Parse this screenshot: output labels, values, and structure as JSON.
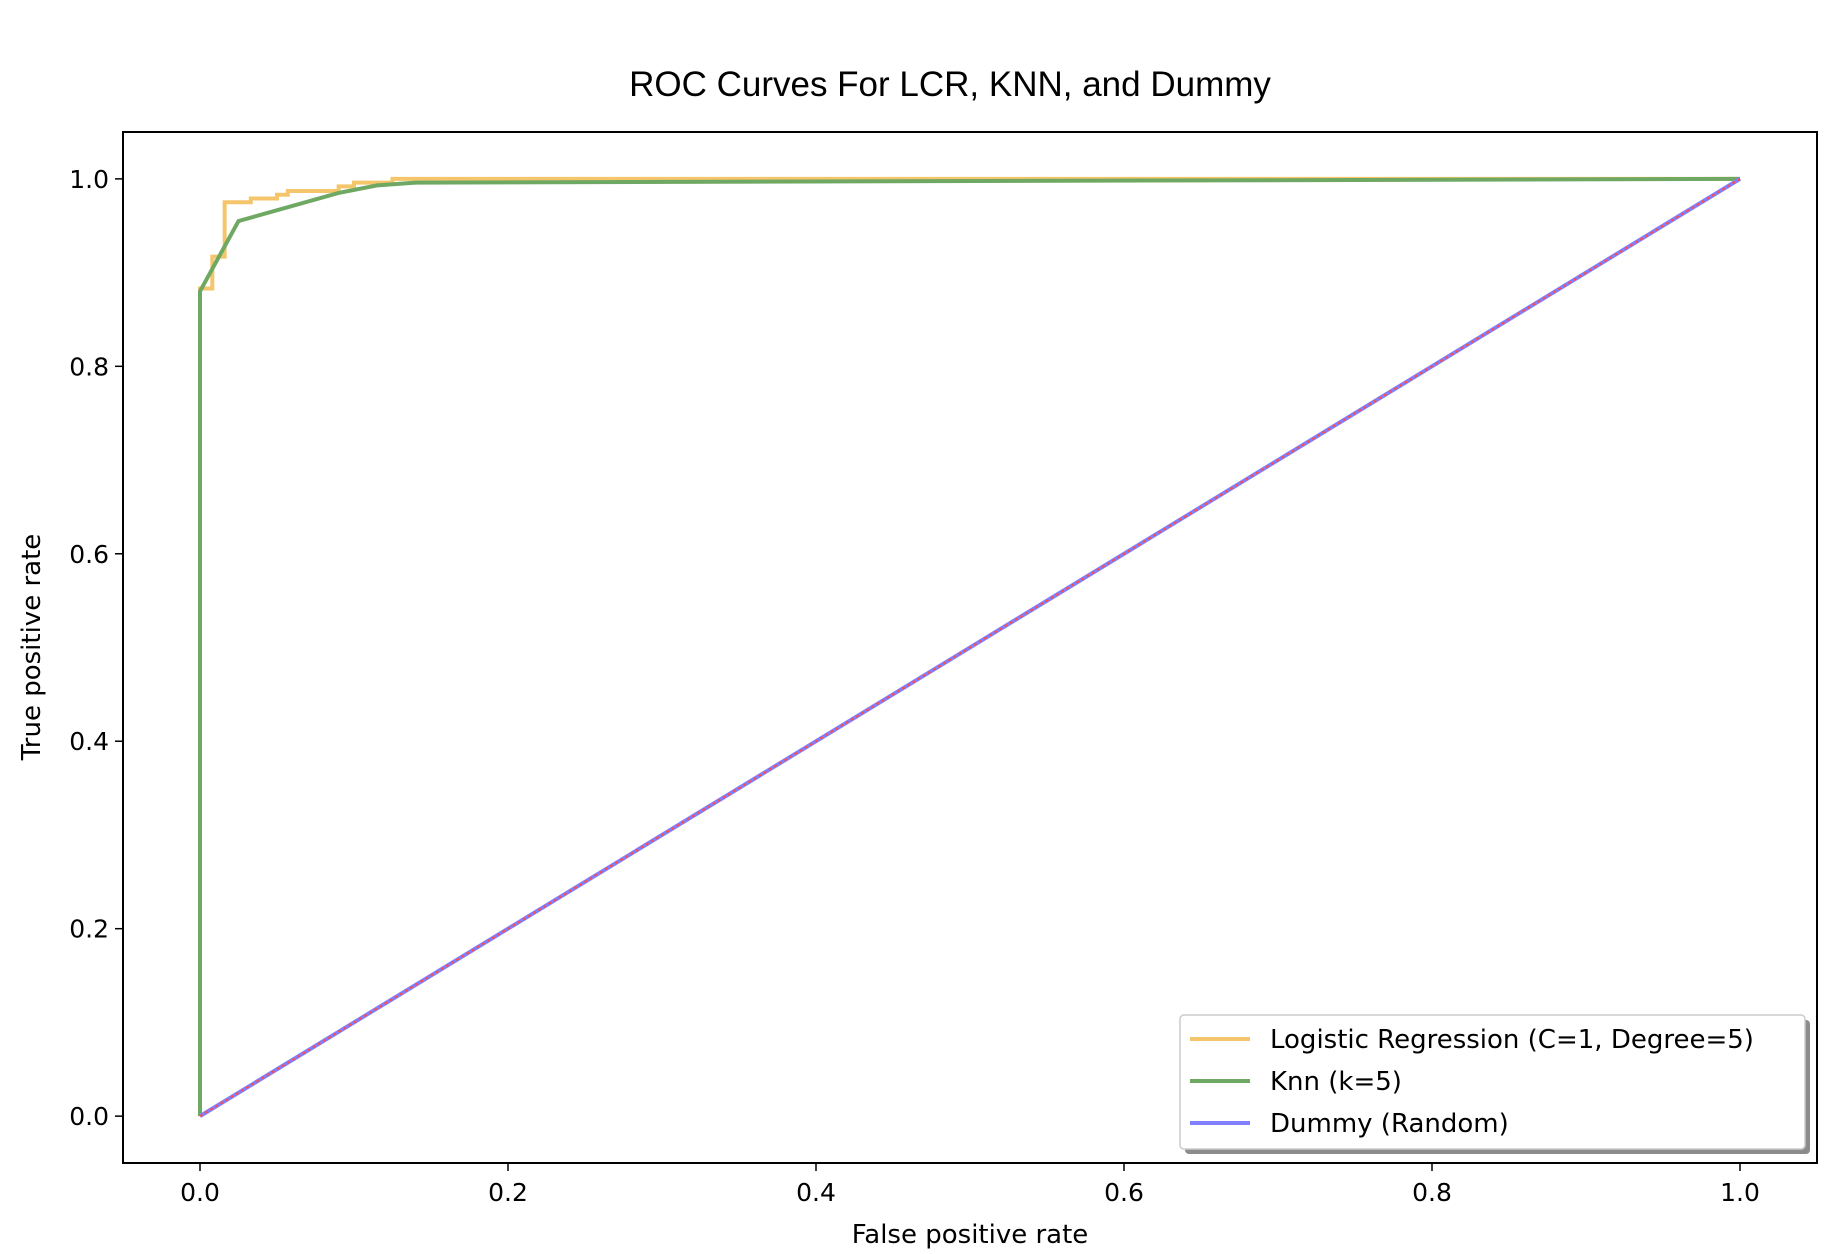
{
  "chart_data": {
    "type": "line",
    "title": "ROC Curves For LCR, KNN, and Dummy",
    "xlabel": "False positive rate",
    "ylabel": "True positive rate",
    "xlim": [
      -0.05,
      1.05
    ],
    "ylim": [
      -0.05,
      1.05
    ],
    "x_ticks": [
      0.0,
      0.2,
      0.4,
      0.6,
      0.8,
      1.0
    ],
    "y_ticks": [
      0.0,
      0.2,
      0.4,
      0.6,
      0.8,
      1.0
    ],
    "x_tick_labels": [
      "0.0",
      "0.2",
      "0.4",
      "0.6",
      "0.8",
      "1.0"
    ],
    "y_tick_labels": [
      "0.0",
      "0.2",
      "0.4",
      "0.6",
      "0.8",
      "1.0"
    ],
    "grid": false,
    "legend_position": "lower-right",
    "series": [
      {
        "name": "Logistic Regression (C=1, Degree=5)",
        "color": "#f5c56b",
        "style": "step",
        "points": [
          [
            0.0,
            0.0
          ],
          [
            0.0,
            0.883
          ],
          [
            0.008,
            0.883
          ],
          [
            0.008,
            0.917
          ],
          [
            0.016,
            0.917
          ],
          [
            0.016,
            0.975
          ],
          [
            0.033,
            0.975
          ],
          [
            0.033,
            0.979
          ],
          [
            0.05,
            0.979
          ],
          [
            0.05,
            0.983
          ],
          [
            0.057,
            0.983
          ],
          [
            0.057,
            0.987
          ],
          [
            0.09,
            0.987
          ],
          [
            0.09,
            0.992
          ],
          [
            0.1,
            0.992
          ],
          [
            0.1,
            0.996
          ],
          [
            0.125,
            0.996
          ],
          [
            0.125,
            1.0
          ],
          [
            1.0,
            1.0
          ]
        ]
      },
      {
        "name": "Knn (k=5)",
        "color": "#6fa862",
        "style": "line",
        "points": [
          [
            0.0,
            0.0
          ],
          [
            0.0,
            0.88
          ],
          [
            0.025,
            0.955
          ],
          [
            0.09,
            0.985
          ],
          [
            0.115,
            0.993
          ],
          [
            0.14,
            0.996
          ],
          [
            1.0,
            1.0
          ]
        ]
      },
      {
        "name": "Dummy (Random)",
        "color": "#7f7fff",
        "style": "line",
        "overlay_color": "#ff4c4c",
        "points": [
          [
            0.0,
            0.0
          ],
          [
            1.0,
            1.0
          ]
        ]
      }
    ]
  }
}
